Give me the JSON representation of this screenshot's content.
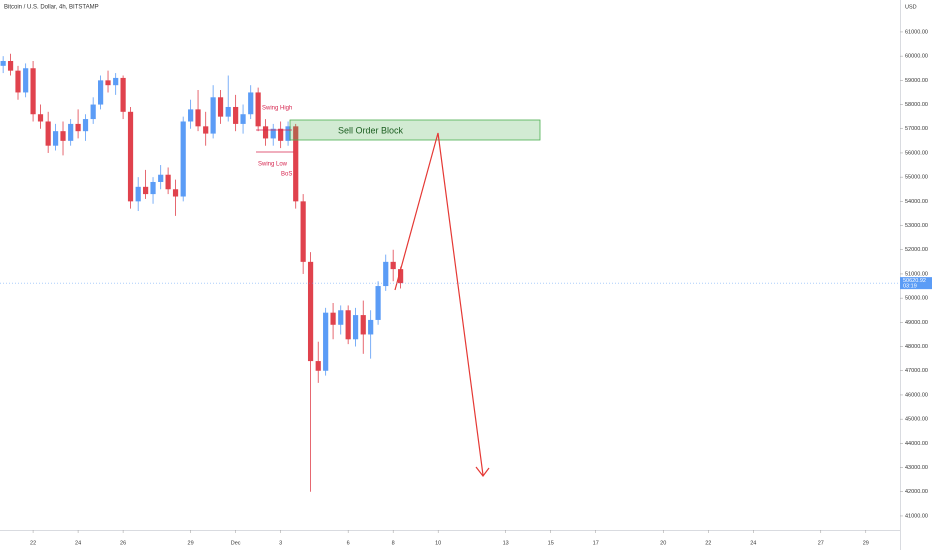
{
  "chart_data": {
    "type": "candlestick",
    "title": "Bitcoin / U.S. Dollar, 4h, BITSTAMP",
    "currency": "USD",
    "up_color": "#5b9cf6",
    "down_color": "#e0424d",
    "x": [
      20.67,
      21.0,
      21.33,
      21.67,
      22.0,
      22.33,
      22.67,
      23.0,
      23.33,
      23.67,
      24.0,
      24.33,
      24.67,
      25.0,
      25.33,
      25.67,
      26.0,
      26.33,
      26.67,
      27.0,
      27.33,
      27.67,
      28.0,
      28.33,
      28.67,
      29.0,
      29.33,
      29.67,
      30.0,
      30.33,
      30.67,
      31.0,
      31.33,
      31.67,
      32.0,
      32.33,
      32.67,
      33.0,
      33.33,
      33.67,
      34.0,
      34.33,
      34.67,
      35.0,
      35.33,
      35.67,
      36.0,
      36.33,
      36.67,
      37.0,
      37.33,
      37.67,
      38.0,
      38.33
    ],
    "open": [
      59600,
      59800,
      59400,
      58500,
      59500,
      57600,
      57300,
      56300,
      56900,
      56500,
      57200,
      56900,
      57400,
      58000,
      59000,
      58800,
      59100,
      57700,
      54000,
      54600,
      54300,
      54800,
      55100,
      54500,
      54200,
      57300,
      57800,
      57100,
      56800,
      58300,
      57500,
      57900,
      57200,
      57600,
      58500,
      57100,
      56600,
      57000,
      56500,
      57100,
      54000,
      51500,
      47400,
      47000,
      49400,
      48900,
      49500,
      48300,
      49300,
      48500,
      49100,
      50500,
      51500,
      51200
    ],
    "high": [
      60000,
      60100,
      59600,
      59700,
      59800,
      58000,
      57700,
      57200,
      57300,
      57400,
      57800,
      57600,
      58300,
      59200,
      59400,
      59300,
      59200,
      57900,
      55000,
      55300,
      55000,
      55500,
      55400,
      54900,
      57500,
      58200,
      58600,
      57700,
      58800,
      58600,
      59200,
      58400,
      58000,
      58800,
      58700,
      57400,
      57200,
      57300,
      57300,
      57200,
      54300,
      51900,
      48200,
      49600,
      49800,
      49700,
      49700,
      49600,
      49900,
      49500,
      50700,
      51800,
      52000,
      51300
    ],
    "low": [
      59300,
      59200,
      58200,
      58300,
      57300,
      57000,
      56000,
      56100,
      55900,
      56300,
      56600,
      56500,
      57200,
      57800,
      58500,
      58400,
      57400,
      53700,
      53600,
      54100,
      53900,
      54500,
      54300,
      53400,
      54000,
      57000,
      56900,
      56300,
      56600,
      57200,
      57300,
      56900,
      56800,
      57400,
      56900,
      56300,
      56300,
      56200,
      56300,
      53700,
      51000,
      42000,
      46500,
      46800,
      48300,
      48500,
      48100,
      48000,
      47700,
      47500,
      48900,
      50300,
      50700,
      50400
    ],
    "close": [
      59800,
      59400,
      58500,
      59500,
      57600,
      57300,
      56300,
      56900,
      56500,
      57200,
      56900,
      57400,
      58000,
      59000,
      58800,
      59100,
      57700,
      54000,
      54600,
      54300,
      54800,
      55100,
      54500,
      54200,
      57300,
      57800,
      57100,
      56800,
      58300,
      57500,
      57900,
      57200,
      57600,
      58500,
      57100,
      56600,
      57000,
      56500,
      57100,
      54000,
      51500,
      47400,
      47000,
      49400,
      48900,
      49500,
      48300,
      49300,
      48500,
      49100,
      50500,
      51500,
      51200,
      50620.92
    ],
    "last_price": 50620.92,
    "countdown": "03:19",
    "xlim": [
      20.53,
      60.52
    ],
    "ylim": [
      40420,
      62320
    ],
    "xticks": [
      {
        "value": 22,
        "label": "22"
      },
      {
        "value": 24,
        "label": "24"
      },
      {
        "value": 26,
        "label": "26"
      },
      {
        "value": 29,
        "label": "29"
      },
      {
        "value": 31,
        "label": "Dec"
      },
      {
        "value": 33,
        "label": "3"
      },
      {
        "value": 36,
        "label": "6"
      },
      {
        "value": 38,
        "label": "8"
      },
      {
        "value": 40,
        "label": "10"
      },
      {
        "value": 43,
        "label": "13"
      },
      {
        "value": 45,
        "label": "15"
      },
      {
        "value": 47,
        "label": "17"
      },
      {
        "value": 50,
        "label": "20"
      },
      {
        "value": 52,
        "label": "22"
      },
      {
        "value": 54,
        "label": "24"
      },
      {
        "value": 57,
        "label": "27"
      },
      {
        "value": 59,
        "label": "29"
      }
    ],
    "yticks": [
      {
        "value": 41000,
        "label": "41000.00"
      },
      {
        "value": 42000,
        "label": "42000.00"
      },
      {
        "value": 43000,
        "label": "43000.00"
      },
      {
        "value": 44000,
        "label": "44000.00"
      },
      {
        "value": 45000,
        "label": "45000.00"
      },
      {
        "value": 46000,
        "label": "46000.00"
      },
      {
        "value": 47000,
        "label": "47000.00"
      },
      {
        "value": 48000,
        "label": "48000.00"
      },
      {
        "value": 49000,
        "label": "49000.00"
      },
      {
        "value": 50000,
        "label": "50000.00"
      },
      {
        "value": 51000,
        "label": "51000.00"
      },
      {
        "value": 52000,
        "label": "52000.00"
      },
      {
        "value": 53000,
        "label": "53000.00"
      },
      {
        "value": 54000,
        "label": "54000.00"
      },
      {
        "value": 55000,
        "label": "55000.00"
      },
      {
        "value": 56000,
        "label": "56000.00"
      },
      {
        "value": 57000,
        "label": "57000.00"
      },
      {
        "value": 58000,
        "label": "58000.00"
      },
      {
        "value": 59000,
        "label": "59000.00"
      },
      {
        "value": 60000,
        "label": "60000.00"
      },
      {
        "value": 61000,
        "label": "61000.00"
      }
    ],
    "annotations": {
      "swing_high": "Swing High",
      "swing_low": "Swing Low",
      "bos": "BoS",
      "order_block": "Sell Order Block"
    }
  }
}
